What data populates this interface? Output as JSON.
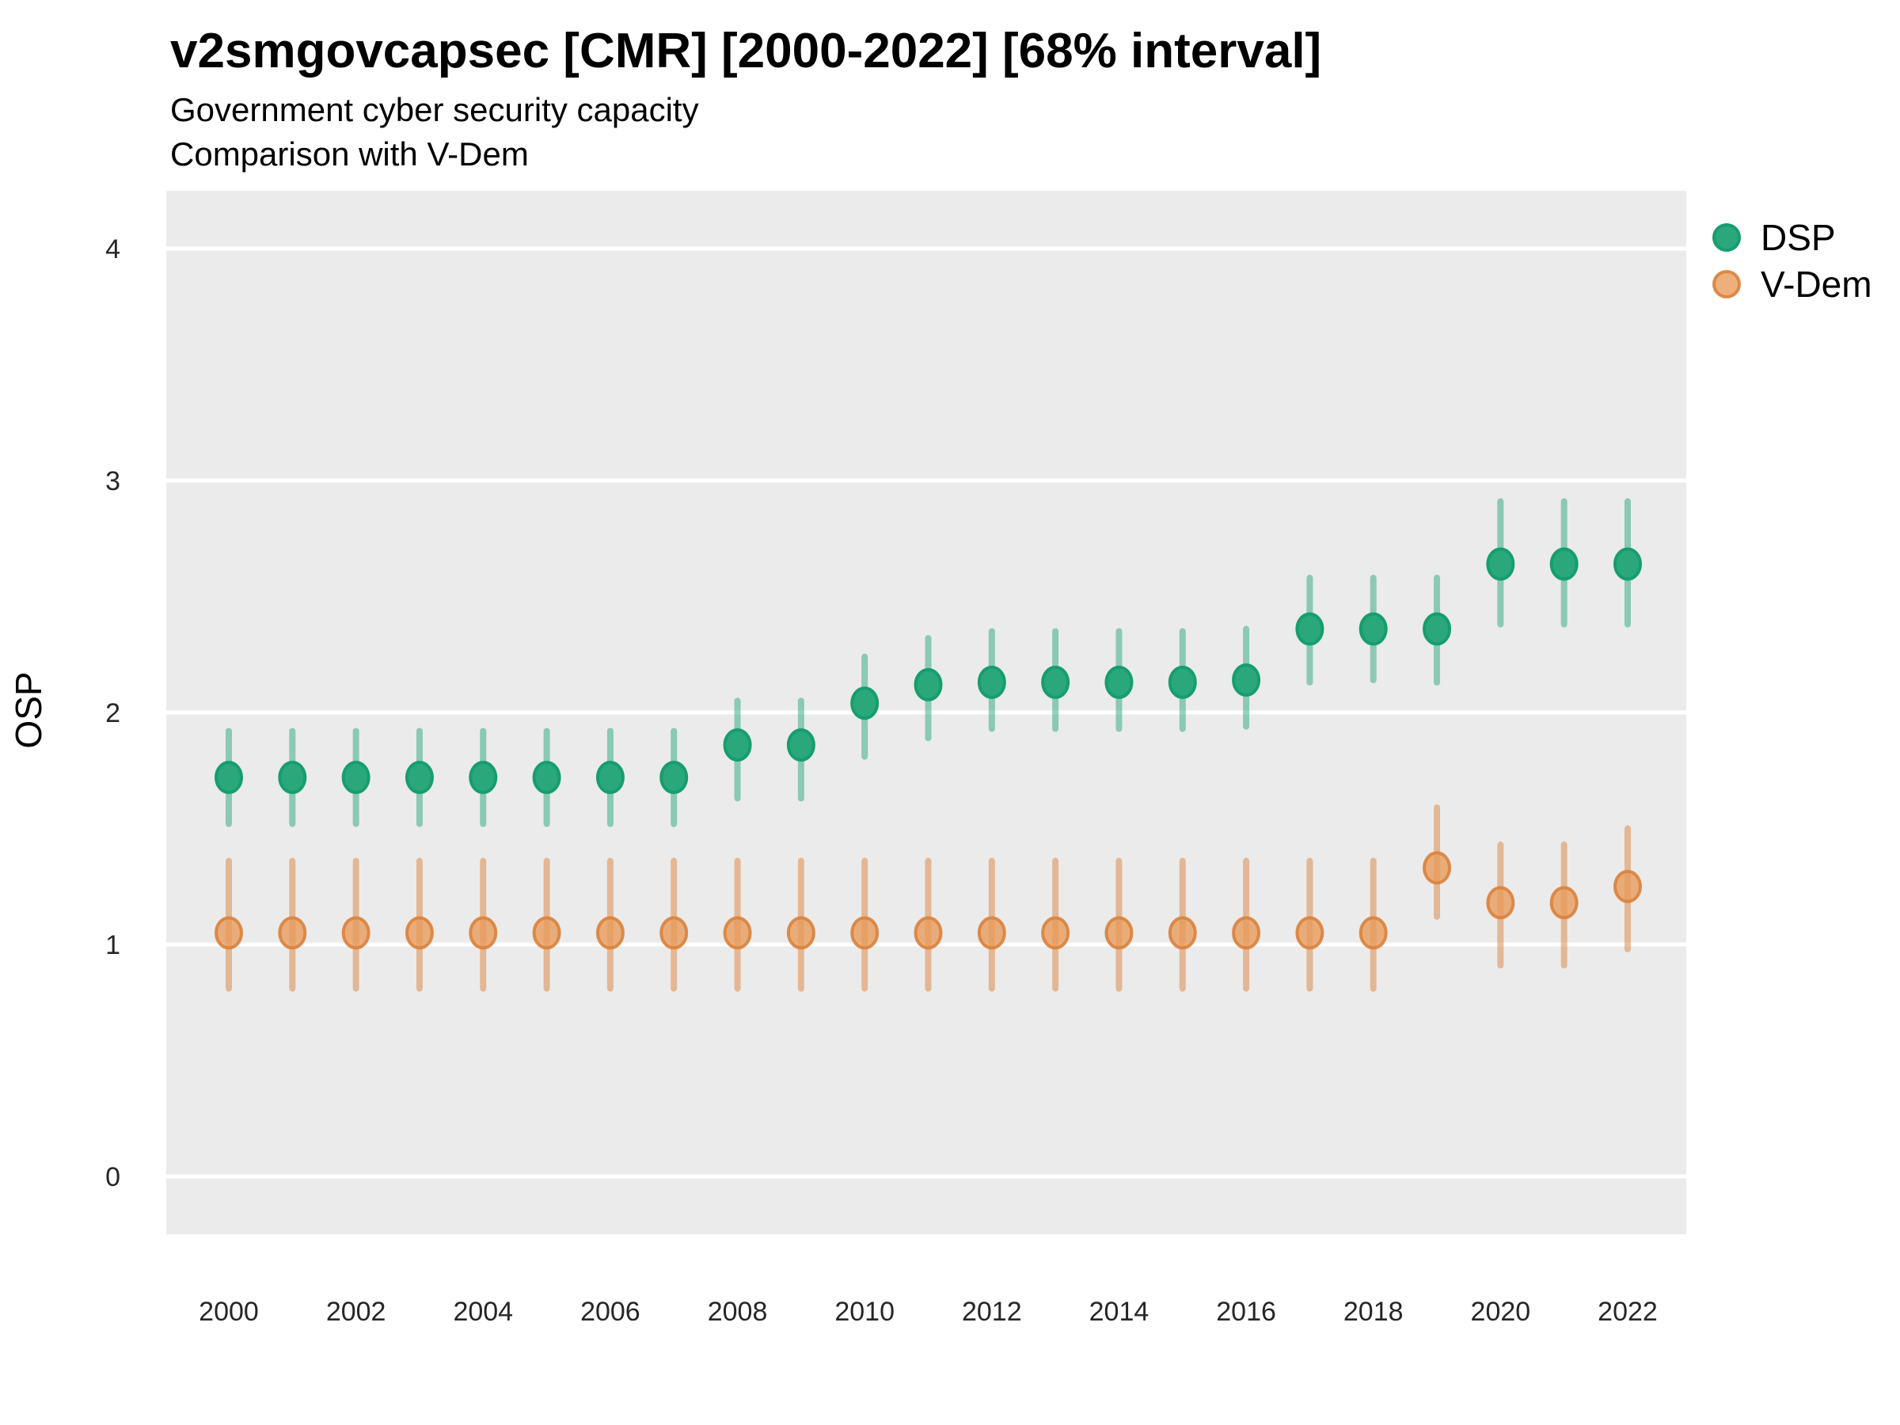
{
  "title": "v2smgovcapsec [CMR] [2000-2022] [68% interval]",
  "subtitle_line1": "Government cyber security capacity",
  "subtitle_line2": "Comparison with V-Dem",
  "ylabel": "OSP",
  "legend": {
    "position": "right-top",
    "items": [
      {
        "label": "DSP",
        "color": "#2AA87C"
      },
      {
        "label": "V-Dem",
        "color": "#E2955A"
      }
    ]
  },
  "colors": {
    "panel_background": "#EBEBEB",
    "gridline": "#FFFFFF",
    "title_text": "#000000",
    "tick_text": "#262626"
  },
  "chart_data": {
    "type": "scatter",
    "subtype": "pointrange",
    "title": "v2smgovcapsec [CMR] [2000-2022] [68% interval]",
    "subtitle": [
      "Government cyber security capacity",
      "Comparison with V-Dem"
    ],
    "xlabel": "",
    "ylabel": "OSP",
    "interval": "68%",
    "grid": "major-horizontal-white-on-gray",
    "legend_position": "right-top",
    "ylim": [
      -0.25,
      4.25
    ],
    "y_ticks": [
      0,
      1,
      2,
      3,
      4
    ],
    "x_ticks": [
      2000,
      2002,
      2004,
      2006,
      2008,
      2010,
      2012,
      2014,
      2016,
      2018,
      2020,
      2022
    ],
    "x": [
      2000,
      2001,
      2002,
      2003,
      2004,
      2005,
      2006,
      2007,
      2008,
      2009,
      2010,
      2011,
      2012,
      2013,
      2014,
      2015,
      2016,
      2017,
      2018,
      2019,
      2020,
      2021,
      2022
    ],
    "series": [
      {
        "name": "DSP",
        "point_fill": "#2AA87C",
        "point_stroke": "#169D70",
        "interval_color": "#2AA87C",
        "interval_opacity": 0.5,
        "values": [
          1.72,
          1.72,
          1.72,
          1.72,
          1.72,
          1.72,
          1.72,
          1.72,
          1.86,
          1.86,
          2.04,
          2.12,
          2.13,
          2.13,
          2.13,
          2.13,
          2.14,
          2.36,
          2.36,
          2.36,
          2.64,
          2.64,
          2.64
        ],
        "lower": [
          1.52,
          1.52,
          1.52,
          1.52,
          1.52,
          1.52,
          1.52,
          1.52,
          1.63,
          1.63,
          1.81,
          1.89,
          1.93,
          1.93,
          1.93,
          1.93,
          1.94,
          2.13,
          2.14,
          2.13,
          2.38,
          2.38,
          2.38
        ],
        "upper": [
          1.92,
          1.92,
          1.92,
          1.92,
          1.92,
          1.92,
          1.92,
          1.92,
          2.05,
          2.05,
          2.24,
          2.32,
          2.35,
          2.35,
          2.35,
          2.35,
          2.36,
          2.58,
          2.58,
          2.58,
          2.91,
          2.91,
          2.91
        ]
      },
      {
        "name": "V-Dem",
        "point_fill": "#E89A58",
        "point_fill_opacity": 0.78,
        "point_stroke": "#D9823C",
        "point_stroke_opacity": 0.9,
        "interval_color": "#DD8D4D",
        "interval_opacity": 0.55,
        "values": [
          1.05,
          1.05,
          1.05,
          1.05,
          1.05,
          1.05,
          1.05,
          1.05,
          1.05,
          1.05,
          1.05,
          1.05,
          1.05,
          1.05,
          1.05,
          1.05,
          1.05,
          1.05,
          1.05,
          1.33,
          1.18,
          1.18,
          1.25
        ],
        "lower": [
          0.81,
          0.81,
          0.81,
          0.81,
          0.81,
          0.81,
          0.81,
          0.81,
          0.81,
          0.81,
          0.81,
          0.81,
          0.81,
          0.81,
          0.81,
          0.81,
          0.81,
          0.81,
          0.81,
          1.12,
          0.91,
          0.91,
          0.98
        ],
        "upper": [
          1.36,
          1.36,
          1.36,
          1.36,
          1.36,
          1.36,
          1.36,
          1.36,
          1.36,
          1.36,
          1.36,
          1.36,
          1.36,
          1.36,
          1.36,
          1.36,
          1.36,
          1.36,
          1.36,
          1.59,
          1.43,
          1.43,
          1.5
        ]
      }
    ]
  }
}
